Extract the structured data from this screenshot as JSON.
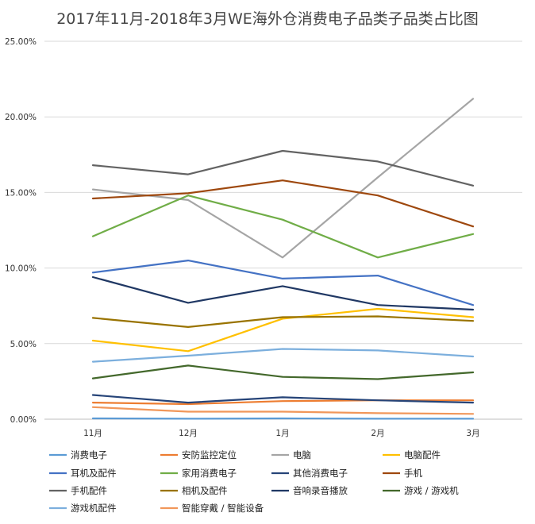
{
  "chart_data": {
    "type": "line",
    "title": "2017年11月-2018年3月WE海外仓消费电子品类子品类占比图",
    "xlabel": "",
    "ylabel": "",
    "categories": [
      "11月",
      "12月",
      "1月",
      "2月",
      "3月"
    ],
    "ylim": [
      0,
      25
    ],
    "yticks": [
      "0.00%",
      "5.00%",
      "10.00%",
      "15.00%",
      "20.00%",
      "25.00%"
    ],
    "ytick_values": [
      0,
      5,
      10,
      15,
      20,
      25
    ],
    "grid": true,
    "legend": "bottom",
    "series": [
      {
        "name": "消费电子",
        "color": "#5b9bd5",
        "values": [
          0.05,
          0.03,
          0.05,
          0.03,
          0.03
        ]
      },
      {
        "name": "安防监控定位",
        "color": "#ed7d31",
        "values": [
          1.1,
          1.0,
          1.2,
          1.25,
          1.25
        ]
      },
      {
        "name": "电脑",
        "color": "#a5a5a5",
        "values": [
          15.2,
          14.5,
          10.7,
          16.0,
          21.2
        ]
      },
      {
        "name": "电脑配件",
        "color": "#ffc000",
        "values": [
          5.2,
          4.5,
          6.65,
          7.3,
          6.75
        ]
      },
      {
        "name": "耳机及配件",
        "color": "#4472c4",
        "values": [
          9.7,
          10.5,
          9.3,
          9.5,
          7.55
        ]
      },
      {
        "name": "家用消费电子",
        "color": "#70ad47",
        "values": [
          12.1,
          14.8,
          13.2,
          10.7,
          12.25
        ]
      },
      {
        "name": "其他消费电子",
        "color": "#264478",
        "values": [
          1.6,
          1.1,
          1.45,
          1.25,
          1.1
        ]
      },
      {
        "name": "手机",
        "color": "#9e480e",
        "values": [
          14.6,
          14.95,
          15.8,
          14.8,
          12.75
        ]
      },
      {
        "name": "手机配件",
        "color": "#636363",
        "values": [
          16.8,
          16.2,
          17.75,
          17.05,
          15.45
        ]
      },
      {
        "name": "相机及配件",
        "color": "#997300",
        "values": [
          6.7,
          6.1,
          6.75,
          6.8,
          6.5
        ]
      },
      {
        "name": "音响录音播放",
        "color": "#203864",
        "values": [
          9.4,
          7.7,
          8.8,
          7.55,
          7.25
        ]
      },
      {
        "name": "游戏 / 游戏机",
        "color": "#43682b",
        "values": [
          2.7,
          3.55,
          2.8,
          2.65,
          3.1
        ]
      },
      {
        "name": "游戏机配件",
        "color": "#7cafdd",
        "values": [
          3.8,
          4.2,
          4.65,
          4.55,
          4.15
        ]
      },
      {
        "name": "智能穿戴 / 智能设备",
        "color": "#f1975a",
        "values": [
          0.8,
          0.5,
          0.5,
          0.4,
          0.35
        ]
      }
    ]
  }
}
